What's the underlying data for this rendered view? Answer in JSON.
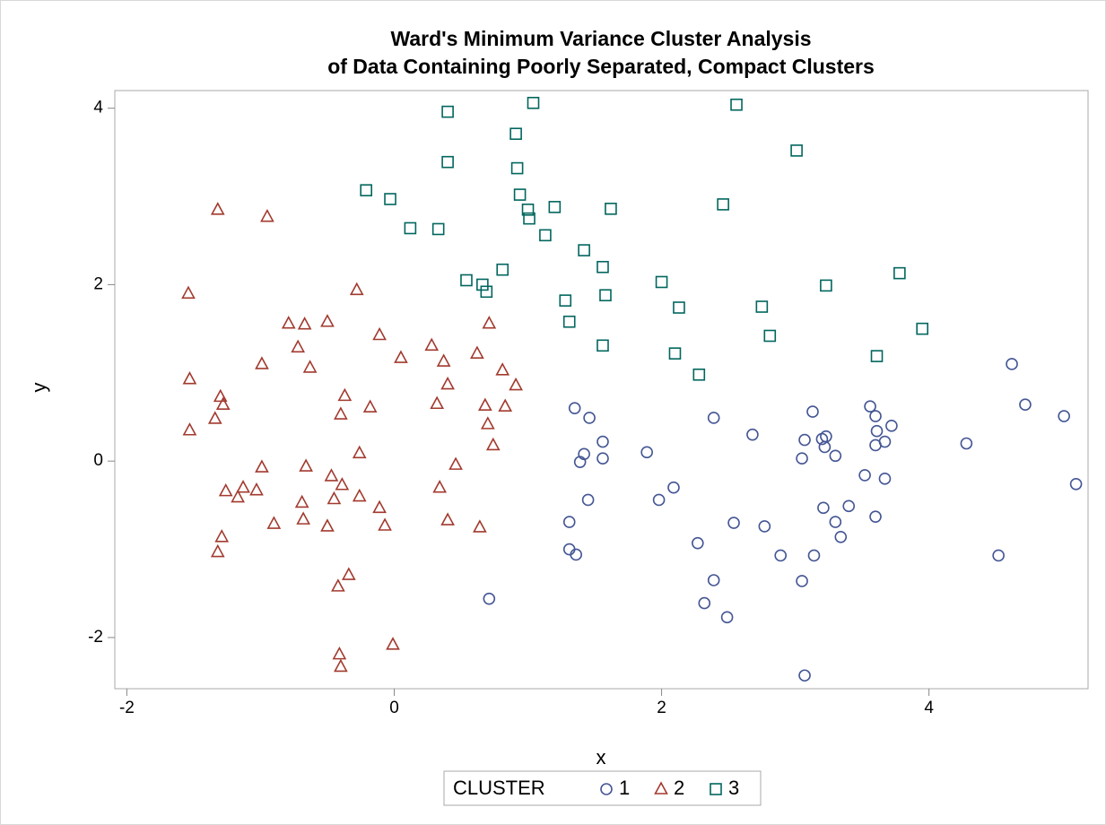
{
  "chart_data": {
    "type": "scatter",
    "title": "Ward's Minimum Variance Cluster Analysis",
    "subtitle": "of Data Containing Poorly Separated, Compact Clusters",
    "xlabel": "x",
    "ylabel": "y",
    "xlim": [
      -2.09,
      5.19
    ],
    "ylim": [
      -2.58,
      4.2
    ],
    "xticks": [
      -2,
      0,
      2,
      4
    ],
    "yticks": [
      -2,
      0,
      2,
      4
    ],
    "legend_title": "CLUSTER",
    "series": [
      {
        "name": "1",
        "color": "#445694",
        "marker": "circle",
        "x": [
          1.35,
          1.46,
          1.42,
          1.39,
          1.56,
          1.56,
          1.45,
          1.89,
          1.31,
          1.31,
          1.36,
          0.71,
          1.98,
          2.09,
          2.27,
          2.39,
          2.54,
          2.39,
          2.32,
          2.49,
          2.68,
          2.77,
          2.89,
          3.05,
          3.07,
          3.13,
          3.07,
          3.05,
          3.14,
          3.2,
          3.23,
          3.22,
          3.3,
          3.21,
          3.3,
          3.34,
          3.4,
          3.52,
          3.56,
          3.6,
          3.61,
          3.6,
          3.67,
          3.72,
          3.67,
          3.6,
          4.28,
          4.52,
          4.62,
          4.72,
          5.01,
          5.1
        ],
        "y": [
          0.6,
          0.49,
          0.08,
          -0.01,
          0.22,
          0.03,
          -0.44,
          0.1,
          -0.69,
          -1.0,
          -1.06,
          -1.56,
          -0.44,
          -0.3,
          -0.93,
          0.49,
          -0.7,
          -1.35,
          -1.61,
          -1.77,
          0.3,
          -0.74,
          -1.07,
          -1.36,
          -2.43,
          0.56,
          0.24,
          0.03,
          -1.07,
          0.25,
          0.28,
          0.16,
          0.06,
          -0.53,
          -0.69,
          -0.86,
          -0.51,
          -0.16,
          0.62,
          0.51,
          0.34,
          0.18,
          0.22,
          0.4,
          -0.2,
          -0.63,
          0.2,
          -1.07,
          1.1,
          0.64,
          0.51,
          -0.26
        ]
      },
      {
        "name": "2",
        "color": "#A23A2E",
        "marker": "triangle",
        "x": [
          -1.32,
          -0.95,
          -1.54,
          -1.53,
          -1.53,
          -1.3,
          -1.28,
          -1.34,
          -0.99,
          -1.26,
          -1.17,
          -1.13,
          -1.03,
          -0.99,
          -1.29,
          -1.32,
          -0.9,
          -0.79,
          -0.67,
          -0.72,
          -0.63,
          -0.66,
          -0.69,
          -0.68,
          -0.5,
          -0.5,
          -0.37,
          -0.4,
          -0.47,
          -0.45,
          -0.39,
          -0.42,
          -0.34,
          -0.41,
          -0.4,
          -0.28,
          -0.18,
          -0.26,
          -0.26,
          -0.11,
          -0.11,
          -0.07,
          -0.01,
          0.05,
          0.28,
          0.32,
          0.37,
          0.4,
          0.34,
          0.46,
          0.4,
          0.62,
          0.64,
          0.68,
          0.71,
          0.7,
          0.74,
          0.81,
          0.83,
          0.91
        ],
        "y": [
          2.85,
          2.77,
          1.9,
          0.93,
          0.35,
          0.73,
          0.64,
          0.48,
          1.1,
          -0.34,
          -0.41,
          -0.3,
          -0.33,
          -0.07,
          -0.86,
          -1.03,
          -0.71,
          1.56,
          1.55,
          1.29,
          1.06,
          -0.06,
          -0.47,
          -0.66,
          -0.74,
          1.58,
          0.74,
          0.53,
          -0.17,
          -0.43,
          -0.27,
          -1.42,
          -1.29,
          -2.19,
          -2.33,
          1.94,
          0.61,
          0.09,
          -0.4,
          1.43,
          -0.53,
          -0.73,
          -2.08,
          1.17,
          1.31,
          0.65,
          1.13,
          0.87,
          -0.3,
          -0.04,
          -0.67,
          1.22,
          -0.75,
          0.63,
          1.56,
          0.42,
          0.18,
          1.03,
          0.62,
          0.86
        ]
      },
      {
        "name": "3",
        "color": "#01665E",
        "marker": "square",
        "x": [
          0.4,
          0.4,
          -0.21,
          -0.03,
          0.12,
          0.33,
          0.91,
          0.92,
          0.94,
          1.0,
          1.01,
          1.04,
          1.2,
          1.13,
          0.54,
          0.66,
          0.69,
          0.81,
          1.42,
          1.56,
          1.62,
          1.58,
          1.28,
          1.31,
          1.56,
          2.0,
          2.13,
          2.1,
          2.28,
          2.46,
          2.56,
          2.75,
          2.81,
          3.01,
          3.23,
          3.61,
          3.78,
          3.95
        ],
        "y": [
          3.96,
          3.39,
          3.07,
          2.97,
          2.64,
          2.63,
          3.71,
          3.32,
          3.02,
          2.85,
          2.75,
          4.06,
          2.88,
          2.56,
          2.05,
          2.0,
          1.92,
          2.17,
          2.39,
          2.2,
          2.86,
          1.88,
          1.82,
          1.58,
          1.31,
          2.03,
          1.74,
          1.22,
          0.98,
          2.91,
          4.04,
          1.75,
          1.42,
          3.52,
          1.99,
          1.19,
          2.13,
          1.5
        ]
      }
    ]
  }
}
